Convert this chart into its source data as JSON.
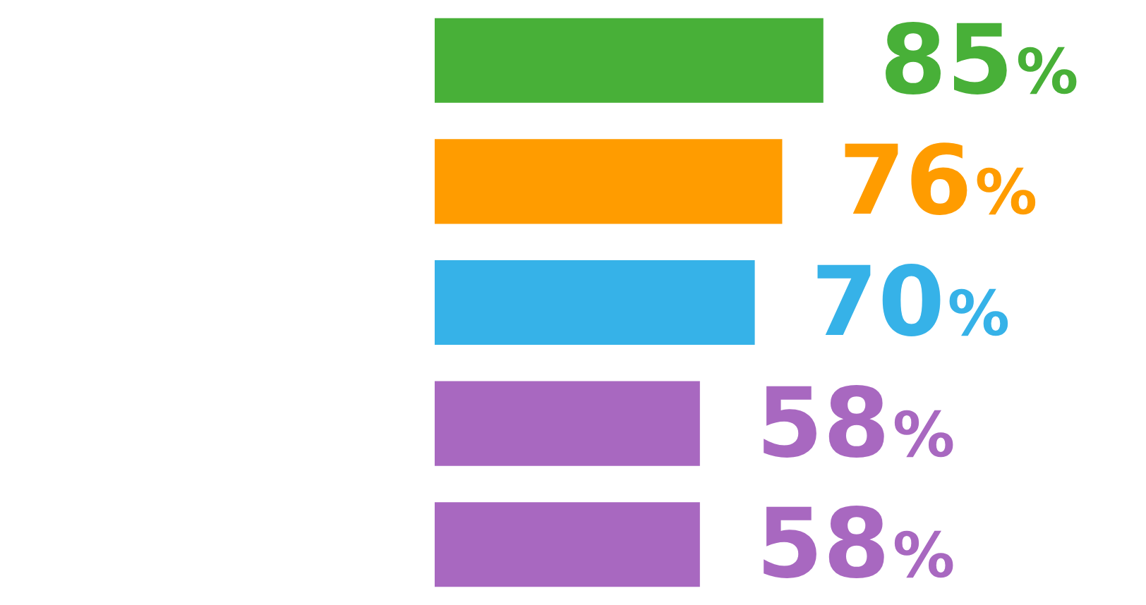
{
  "chart_data": {
    "type": "bar",
    "orientation": "horizontal",
    "categories": [
      null,
      null,
      null,
      null,
      null
    ],
    "values": [
      85,
      76,
      70,
      58,
      58
    ],
    "colors": [
      "#48b038",
      "#ff9c00",
      "#36b2e8",
      "#a868c0",
      "#a868c0"
    ],
    "value_labels": [
      "85%",
      "76%",
      "70%",
      "58%",
      "58%"
    ]
  }
}
